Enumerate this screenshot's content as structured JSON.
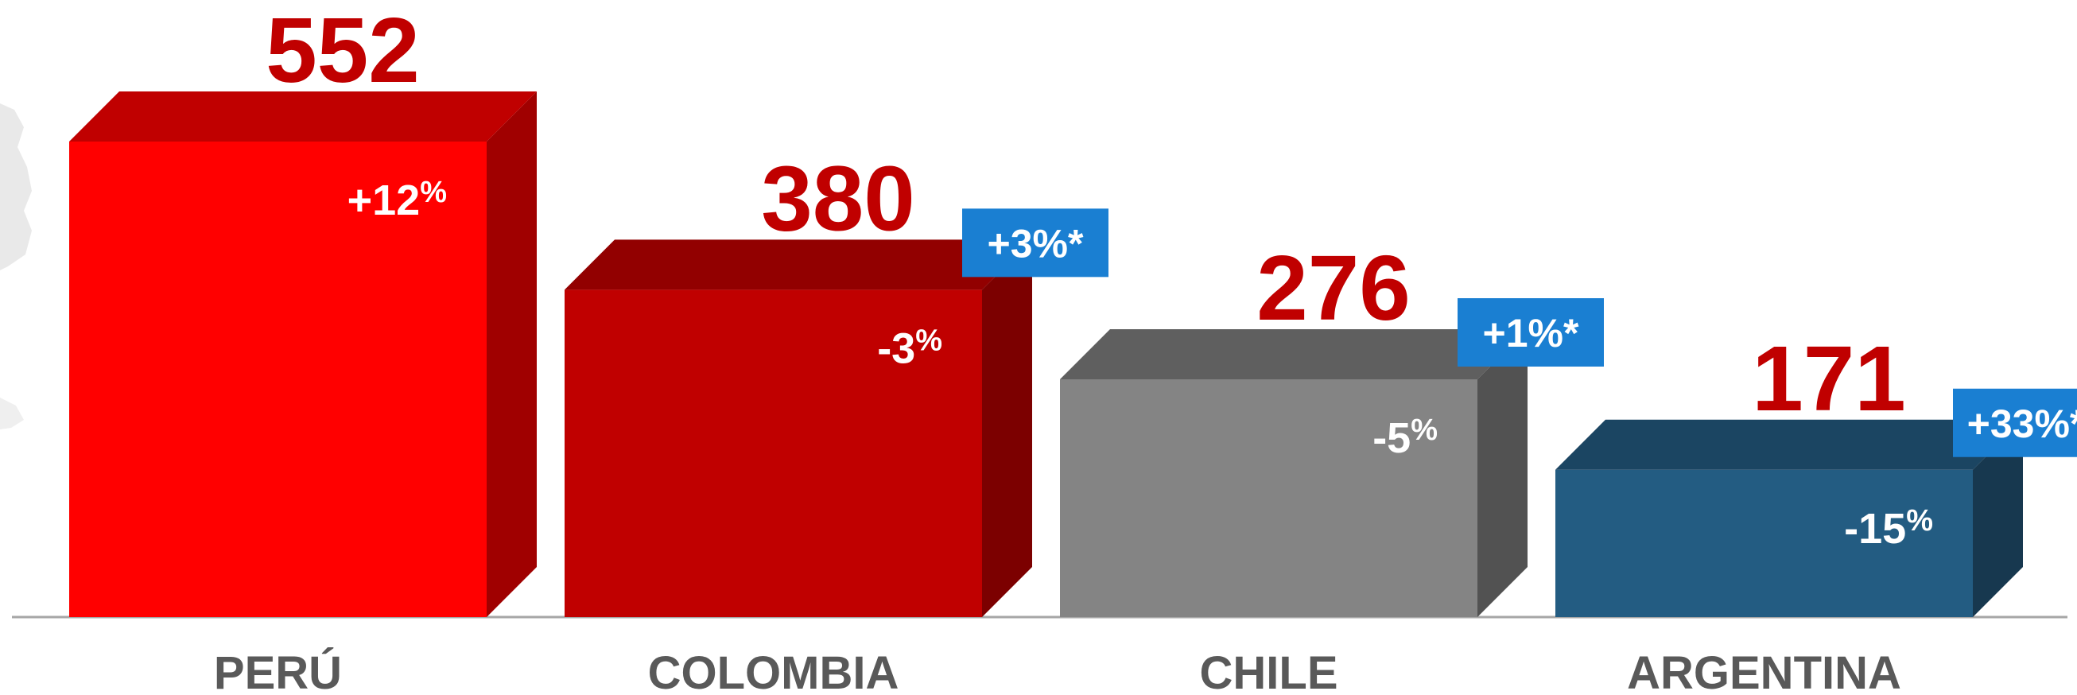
{
  "chart_data": {
    "type": "bar",
    "style": "3d-column",
    "categories": [
      "PERÚ",
      "COLOMBIA",
      "CHILE",
      "ARGENTINA"
    ],
    "values": [
      552,
      380,
      276,
      171
    ],
    "value_labels": [
      "552",
      "380",
      "276",
      "171"
    ],
    "change_labels": [
      {
        "main": "+12",
        "sup": "%"
      },
      {
        "main": "-3",
        "sup": "%"
      },
      {
        "main": "-5",
        "sup": "%"
      },
      {
        "main": "-15",
        "sup": "%"
      }
    ],
    "badge_labels": [
      "",
      "+3%*",
      "+1%*",
      "+33%*"
    ],
    "colors": {
      "bars": [
        {
          "front": "#ff0000",
          "top": "#c00000",
          "side": "#a00000"
        },
        {
          "front": "#c00000",
          "top": "#920000",
          "side": "#7c0000"
        },
        {
          "front": "#848484",
          "top": "#5f5f5f",
          "side": "#525252"
        },
        {
          "front": "#235c82",
          "top": "#1b4562",
          "side": "#17384f"
        }
      ],
      "value_text": "#c00000",
      "change_text": "#ffffff",
      "badge_bg": "#1a7fd2",
      "badge_text": "#ffffff",
      "category_text": "#595959",
      "baseline": "#a6a6a6"
    },
    "ylim": [
      0,
      600
    ],
    "grid": false,
    "legend": "none"
  }
}
